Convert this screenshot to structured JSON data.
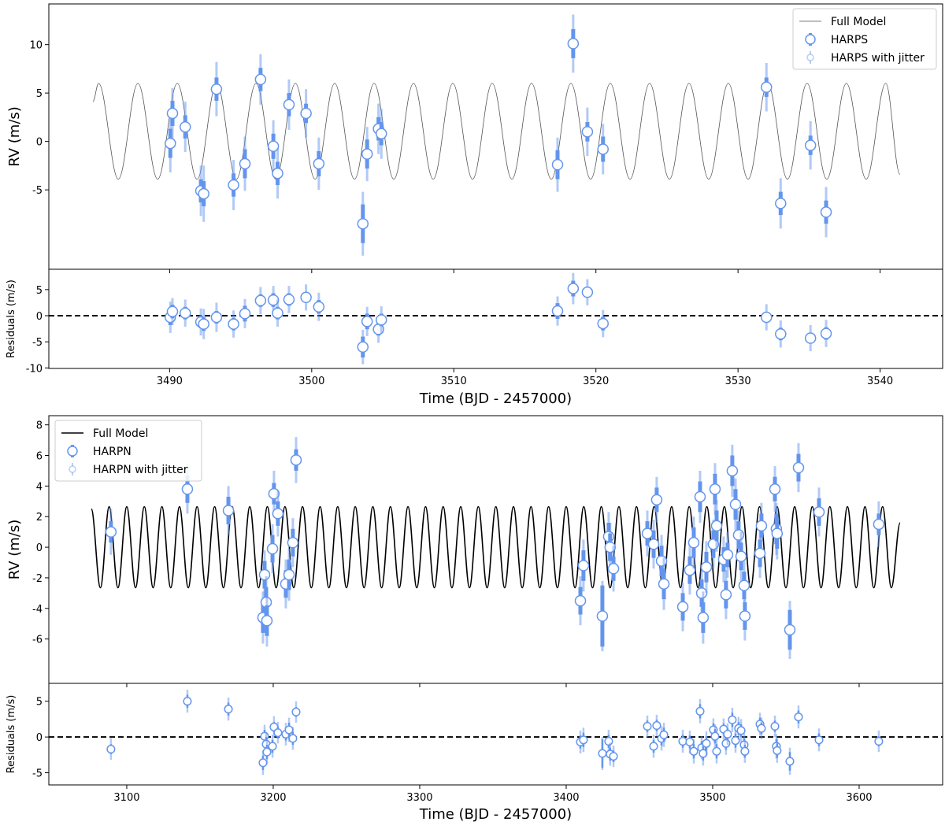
{
  "chart_data": [
    {
      "type": "scatter",
      "ylabel": "RV (m/s)",
      "legend": "upper right",
      "xlim": [
        3481.5,
        3544.4
      ],
      "xticks": [
        3490,
        3500,
        3510,
        3520,
        3530,
        3540
      ],
      "xtick_labels": false,
      "ylim": [
        -13.2,
        14.2
      ],
      "yticks": [
        -5,
        0,
        5,
        10
      ],
      "series": [
        {
          "name": "Full Model",
          "color": "#555555",
          "x": [
            3484.6,
            3485.0,
            3486.39,
            3487.77,
            3489.16,
            3490.54,
            3491.93,
            3493.31,
            3494.7,
            3496.08,
            3497.47,
            3498.85,
            3500.24,
            3501.62,
            3503.01,
            3504.39,
            3505.78,
            3507.16,
            3508.55,
            3509.93,
            3511.32,
            3512.7,
            3514.09,
            3515.47,
            3516.86,
            3518.24,
            3519.63,
            3521.01,
            3522.4,
            3523.78,
            3525.17,
            3526.55,
            3527.94,
            3529.32,
            3530.71,
            3532.09,
            3533.48,
            3534.86,
            3536.25,
            3537.63,
            3539.02,
            3540.4,
            3541.4
          ],
          "values": [
            4.1,
            6.0,
            -3.9,
            6.0,
            -3.9,
            6.0,
            -3.9,
            6.0,
            -3.9,
            6.0,
            -3.9,
            6.0,
            -3.9,
            6.0,
            -3.9,
            6.0,
            -3.9,
            6.0,
            -3.9,
            6.0,
            -3.9,
            6.0,
            -3.9,
            6.0,
            -3.9,
            6.0,
            -3.9,
            6.0,
            -3.9,
            6.0,
            -3.9,
            6.0,
            -3.9,
            6.0,
            -3.9,
            6.0,
            -3.9,
            6.0,
            -3.9,
            6.0,
            -3.9,
            6.0,
            -3.4
          ]
        },
        {
          "name": "HARPS",
          "jitter_name": "HARPS with jitter",
          "color": "#6495ed",
          "x": [
            3490.05,
            3490.2,
            3491.1,
            3492.2,
            3492.4,
            3493.3,
            3494.5,
            3495.3,
            3496.4,
            3497.3,
            3497.6,
            3498.4,
            3499.6,
            3500.5,
            3503.6,
            3503.9,
            3504.7,
            3504.9,
            3517.3,
            3518.4,
            3519.4,
            3520.5,
            3532.0,
            3533.0,
            3535.1,
            3536.2
          ],
          "values": [
            -0.2,
            2.9,
            1.5,
            -5.1,
            -5.4,
            5.4,
            -4.5,
            -2.3,
            6.4,
            -0.5,
            -3.3,
            3.8,
            2.9,
            -2.3,
            -8.5,
            -1.3,
            1.3,
            0.8,
            -2.4,
            10.1,
            1.0,
            -0.8,
            5.6,
            -6.4,
            -0.4,
            -7.3
          ],
          "errors": [
            1.5,
            1.3,
            1.2,
            1.2,
            1.3,
            1.2,
            1.2,
            1.5,
            1.2,
            1.3,
            1.2,
            1.2,
            1.0,
            1.3,
            2.0,
            1.5,
            1.2,
            1.2,
            1.5,
            1.5,
            1.0,
            1.3,
            1.0,
            1.2,
            1.0,
            1.2
          ],
          "jitter_errors": [
            3.0,
            2.6,
            2.6,
            2.6,
            2.9,
            2.8,
            2.6,
            2.8,
            2.6,
            2.7,
            2.6,
            2.6,
            2.5,
            2.7,
            3.3,
            2.8,
            2.6,
            2.6,
            2.8,
            3.0,
            2.5,
            2.6,
            2.5,
            2.6,
            2.5,
            2.6
          ]
        }
      ]
    },
    {
      "type": "scatter",
      "ylabel": "Residuals (m/s)",
      "xlabel": "Time (BJD - 2457000)",
      "hline": 0,
      "xlim": [
        3481.5,
        3544.4
      ],
      "xticks": [
        3490,
        3500,
        3510,
        3520,
        3530,
        3540
      ],
      "ylim": [
        -10.1,
        8.9
      ],
      "yticks": [
        -10,
        -5,
        0,
        5
      ],
      "series": [
        {
          "name": "HARPS",
          "color": "#6495ed",
          "x": [
            3490.05,
            3490.2,
            3491.1,
            3492.2,
            3492.4,
            3493.3,
            3494.5,
            3495.3,
            3496.4,
            3497.3,
            3497.6,
            3498.4,
            3499.6,
            3500.5,
            3503.6,
            3503.9,
            3504.7,
            3504.9,
            3517.3,
            3518.4,
            3519.4,
            3520.5,
            3532.0,
            3533.0,
            3535.1,
            3536.2
          ],
          "values": [
            -0.3,
            0.8,
            0.5,
            -1.2,
            -1.6,
            -0.3,
            -1.6,
            0.4,
            2.9,
            3.0,
            0.5,
            3.1,
            3.5,
            1.7,
            -6.0,
            -1.1,
            -2.6,
            -0.8,
            0.9,
            5.2,
            4.5,
            -1.5,
            -0.3,
            -3.5,
            -4.3,
            -3.4
          ],
          "errors": [
            1.5,
            1.3,
            1.2,
            1.2,
            1.3,
            1.2,
            1.2,
            1.5,
            1.2,
            1.3,
            1.2,
            1.2,
            1.0,
            1.3,
            2.0,
            1.5,
            1.2,
            1.2,
            1.5,
            1.5,
            1.0,
            1.3,
            1.0,
            1.2,
            1.0,
            1.2
          ],
          "jitter_errors": [
            3.0,
            2.6,
            2.6,
            2.6,
            2.9,
            2.8,
            2.6,
            2.8,
            2.6,
            2.7,
            2.6,
            2.6,
            2.5,
            2.7,
            3.3,
            2.8,
            2.6,
            2.6,
            2.8,
            3.0,
            2.5,
            2.6,
            2.5,
            2.6,
            2.5,
            2.6
          ]
        }
      ]
    },
    {
      "type": "scatter",
      "ylabel": "RV (m/s)",
      "legend": "upper left",
      "xlim": [
        3046.8,
        3657
      ],
      "xticks": [
        3100,
        3200,
        3300,
        3400,
        3500,
        3600
      ],
      "xtick_labels": false,
      "ylim": [
        -8.9,
        8.6
      ],
      "yticks": [
        -6,
        -4,
        -2,
        0,
        2,
        4,
        6,
        8
      ],
      "series": [
        {
          "name": "Full Model",
          "color": "#000000",
          "x": [
            3075.8,
            3082,
            3088,
            3094,
            3100,
            3106,
            3112,
            3118,
            3124,
            3130,
            3136,
            3142,
            3148,
            3154,
            3160,
            3166,
            3172,
            3178,
            3184,
            3190,
            3196,
            3202,
            3208,
            3214,
            3220,
            3226,
            3232,
            3238,
            3244,
            3250,
            3256,
            3262,
            3268,
            3274,
            3280,
            3286,
            3292,
            3298,
            3304,
            3310,
            3316,
            3322,
            3328,
            3334,
            3340,
            3346,
            3352,
            3358,
            3364,
            3370,
            3376,
            3382,
            3388,
            3394,
            3400,
            3406,
            3412,
            3418,
            3424,
            3430,
            3436,
            3442,
            3448,
            3454,
            3460,
            3466,
            3472,
            3478,
            3484,
            3490,
            3496,
            3502,
            3508,
            3514,
            3520,
            3526,
            3532,
            3538,
            3544,
            3550,
            3556,
            3562,
            3568,
            3574,
            3580,
            3586,
            3592,
            3598,
            3604,
            3610,
            3616,
            3622,
            3628
          ],
          "values": [
            2.5,
            -2.65,
            2.65,
            -2.65,
            2.65,
            -2.65,
            2.65,
            -2.65,
            2.65,
            -2.65,
            2.65,
            -2.65,
            2.65,
            -2.65,
            2.65,
            -2.65,
            2.65,
            -2.65,
            2.65,
            -2.65,
            2.65,
            -2.65,
            2.65,
            -2.65,
            2.65,
            -2.65,
            2.65,
            -2.65,
            2.65,
            -2.65,
            2.65,
            -2.65,
            2.65,
            -2.65,
            2.65,
            -2.65,
            2.65,
            -2.65,
            2.65,
            -2.65,
            2.65,
            -2.65,
            2.65,
            -2.65,
            2.65,
            -2.65,
            2.65,
            -2.65,
            2.65,
            -2.65,
            2.65,
            -2.65,
            2.65,
            -2.65,
            2.65,
            -2.65,
            2.65,
            -2.65,
            2.65,
            -2.65,
            2.65,
            -2.65,
            2.65,
            -2.65,
            2.65,
            -2.65,
            2.65,
            -2.65,
            2.65,
            -2.65,
            2.65,
            -2.65,
            2.65,
            -2.65,
            2.65,
            -2.65,
            2.65,
            -2.65,
            2.65,
            -2.65,
            2.65,
            -2.65,
            2.65,
            -2.65,
            2.65,
            -2.65,
            2.65,
            -2.65,
            2.65,
            -2.65,
            2.65,
            -2.65,
            1.6
          ]
        },
        {
          "name": "HARPN",
          "jitter_name": "HARPN with jitter",
          "color": "#6495ed",
          "x": [
            3089.2,
            3141.4,
            3169.4,
            3193.0,
            3194.1,
            3195.2,
            3195.7,
            3199.5,
            3200.5,
            3203.2,
            3208.6,
            3210.8,
            3213.4,
            3215.6,
            3409.7,
            3411.8,
            3424.7,
            3429.0,
            3430.0,
            3432.3,
            3455.4,
            3459.7,
            3461.8,
            3465.1,
            3466.7,
            3479.6,
            3484.4,
            3487.1,
            3491.4,
            3492.5,
            3493.5,
            3495.7,
            3500.5,
            3501.6,
            3502.7,
            3507.5,
            3509.1,
            3510.2,
            3513.4,
            3515.6,
            3517.7,
            3519.4,
            3521.5,
            3522.0,
            3532.3,
            3533.3,
            3542.5,
            3543.5,
            3544.0,
            3552.7,
            3558.6,
            3572.6,
            3613.4
          ],
          "values": [
            1.0,
            3.8,
            2.4,
            -4.6,
            -1.8,
            -3.6,
            -4.8,
            -0.1,
            3.5,
            2.2,
            -2.4,
            -1.8,
            0.3,
            5.7,
            -3.5,
            -1.2,
            -4.5,
            0.7,
            0.0,
            -1.4,
            0.9,
            0.2,
            3.1,
            -0.9,
            -2.4,
            -3.9,
            -1.5,
            0.3,
            3.3,
            -3.0,
            -4.6,
            -1.3,
            0.2,
            3.8,
            1.4,
            -0.8,
            -3.1,
            -0.5,
            5.0,
            2.8,
            0.8,
            -0.6,
            -2.5,
            -4.5,
            -0.4,
            1.4,
            3.8,
            1.2,
            0.9,
            -5.4,
            5.2,
            2.3,
            1.5
          ],
          "errors": [
            0.7,
            0.9,
            0.9,
            1.0,
            0.9,
            1.0,
            1.0,
            0.9,
            0.7,
            0.8,
            0.9,
            1.0,
            0.9,
            0.7,
            0.9,
            1.0,
            2.0,
            0.9,
            0.9,
            0.8,
            0.8,
            0.9,
            0.8,
            1.0,
            1.0,
            0.9,
            0.9,
            1.0,
            1.0,
            0.9,
            1.0,
            1.0,
            0.9,
            1.0,
            1.0,
            0.8,
            0.9,
            0.8,
            1.0,
            1.0,
            0.9,
            0.9,
            0.9,
            0.9,
            0.9,
            0.8,
            0.8,
            1.0,
            1.0,
            1.3,
            0.9,
            0.9,
            0.7
          ],
          "jitter_errors": [
            1.5,
            1.6,
            1.6,
            1.7,
            1.6,
            1.7,
            1.7,
            1.6,
            1.5,
            1.5,
            1.6,
            1.7,
            1.6,
            1.5,
            1.6,
            1.7,
            2.3,
            1.6,
            1.6,
            1.5,
            1.5,
            1.6,
            1.5,
            1.7,
            1.7,
            1.6,
            1.6,
            1.7,
            1.7,
            1.6,
            1.7,
            1.7,
            1.6,
            1.7,
            1.7,
            1.5,
            1.6,
            1.5,
            1.7,
            1.7,
            1.6,
            1.6,
            1.6,
            1.6,
            1.6,
            1.5,
            1.5,
            1.7,
            1.7,
            1.9,
            1.6,
            1.6,
            1.5
          ]
        }
      ]
    },
    {
      "type": "scatter",
      "ylabel": "Residuals (m/s)",
      "xlabel": "Time (BJD - 2457000)",
      "hline": 0,
      "xlim": [
        3046.8,
        3657
      ],
      "xticks": [
        3100,
        3200,
        3300,
        3400,
        3500,
        3600
      ],
      "ylim": [
        -6.7,
        7.5
      ],
      "yticks": [
        -5,
        0,
        5
      ],
      "series": [
        {
          "name": "HARPN",
          "color": "#6495ed",
          "x": [
            3089.2,
            3141.4,
            3169.4,
            3193.0,
            3194.1,
            3195.2,
            3195.7,
            3199.5,
            3200.5,
            3203.2,
            3208.6,
            3210.8,
            3213.4,
            3215.6,
            3409.7,
            3411.8,
            3424.7,
            3429.0,
            3430.0,
            3432.3,
            3455.4,
            3459.7,
            3461.8,
            3465.1,
            3466.7,
            3479.6,
            3484.4,
            3487.1,
            3491.4,
            3492.5,
            3493.5,
            3495.7,
            3500.5,
            3501.6,
            3502.7,
            3507.5,
            3509.1,
            3510.2,
            3513.4,
            3515.6,
            3517.7,
            3519.4,
            3521.5,
            3522.0,
            3532.3,
            3533.3,
            3542.5,
            3543.5,
            3544.0,
            3552.7,
            3558.6,
            3572.6,
            3613.4
          ],
          "values": [
            -1.7,
            5.0,
            3.9,
            -3.6,
            0.1,
            -1.0,
            -2.1,
            -1.3,
            1.4,
            0.6,
            0.4,
            1.0,
            -0.2,
            3.5,
            -0.7,
            -0.4,
            -2.3,
            -0.6,
            -2.4,
            -2.7,
            1.5,
            -1.3,
            1.6,
            -0.2,
            0.3,
            -0.6,
            -0.7,
            -2.0,
            3.6,
            -1.5,
            -2.3,
            -0.9,
            1.0,
            0.1,
            -2.0,
            1.1,
            -0.9,
            0.4,
            2.4,
            -0.5,
            1.2,
            0.9,
            -1.1,
            -2.0,
            1.8,
            1.2,
            1.5,
            -1.3,
            -1.9,
            -3.4,
            2.8,
            -0.4,
            -0.6
          ],
          "errors": [
            0.7,
            0.9,
            0.9,
            1.0,
            0.9,
            1.0,
            1.0,
            0.9,
            0.7,
            0.8,
            0.9,
            1.0,
            0.9,
            0.7,
            0.9,
            1.0,
            2.0,
            0.9,
            0.9,
            0.8,
            0.8,
            0.9,
            0.8,
            1.0,
            1.0,
            0.9,
            0.9,
            1.0,
            1.0,
            0.9,
            1.0,
            1.0,
            0.9,
            1.0,
            1.0,
            0.8,
            0.9,
            0.8,
            1.0,
            1.0,
            0.9,
            0.9,
            0.9,
            0.9,
            0.9,
            0.8,
            0.8,
            1.0,
            1.0,
            1.3,
            0.9,
            0.9,
            0.7
          ],
          "jitter_errors": [
            1.5,
            1.6,
            1.6,
            1.7,
            1.6,
            1.7,
            1.7,
            1.6,
            1.5,
            1.5,
            1.6,
            1.7,
            1.6,
            1.5,
            1.6,
            1.7,
            2.3,
            1.6,
            1.6,
            1.5,
            1.5,
            1.6,
            1.5,
            1.7,
            1.7,
            1.6,
            1.6,
            1.7,
            1.7,
            1.6,
            1.7,
            1.7,
            1.6,
            1.7,
            1.7,
            1.5,
            1.6,
            1.5,
            1.7,
            1.7,
            1.6,
            1.6,
            1.6,
            1.6,
            1.6,
            1.5,
            1.5,
            1.7,
            1.7,
            1.9,
            1.6,
            1.6,
            1.5
          ]
        }
      ]
    }
  ]
}
